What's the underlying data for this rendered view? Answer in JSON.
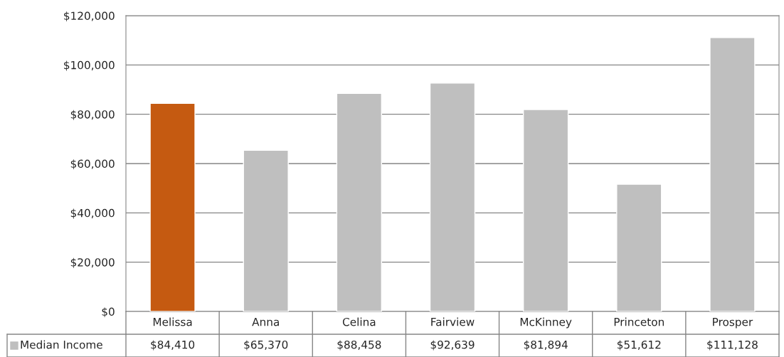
{
  "chart_data": {
    "type": "bar",
    "categories": [
      "Melissa",
      "Anna",
      "Celina",
      "Fairview",
      "McKinney",
      "Princeton",
      "Prosper"
    ],
    "series": [
      {
        "name": "Median Income",
        "color": "#bfbfbf",
        "colors": [
          "#c55a11",
          "#bfbfbf",
          "#bfbfbf",
          "#bfbfbf",
          "#bfbfbf",
          "#bfbfbf",
          "#bfbfbf"
        ],
        "values": [
          84410,
          65370,
          88458,
          92639,
          81894,
          51612,
          111128
        ],
        "value_labels": [
          "$84,410",
          "$65,370",
          "$88,458",
          "$92,639",
          "$81,894",
          "$51,612",
          "$111,128"
        ]
      }
    ],
    "ylim": [
      0,
      120000
    ],
    "yticks": [
      {
        "value": 0,
        "label": "$0"
      },
      {
        "value": 20000,
        "label": "$20,000"
      },
      {
        "value": 40000,
        "label": "$40,000"
      },
      {
        "value": 60000,
        "label": "$60,000"
      },
      {
        "value": 80000,
        "label": "$80,000"
      },
      {
        "value": 100000,
        "label": "$100,000"
      },
      {
        "value": 120000,
        "label": "$120,000"
      }
    ],
    "grid": "y"
  }
}
